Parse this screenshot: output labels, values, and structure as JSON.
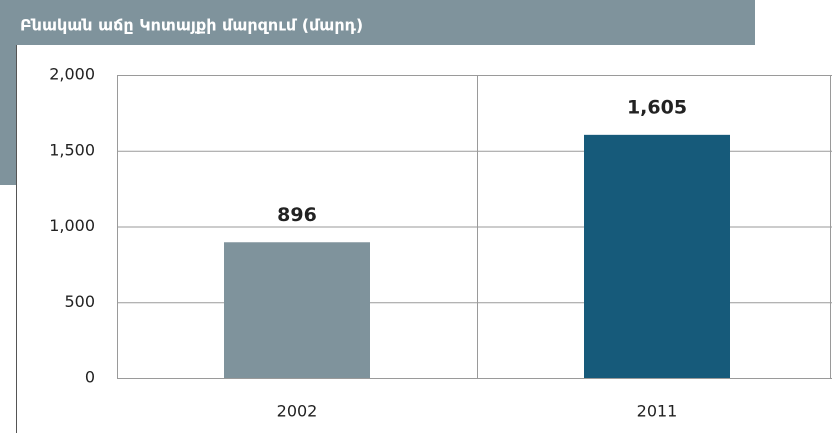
{
  "chart_data": {
    "type": "bar",
    "title": "Բնական աճը Կոտայքի մարզում (մարդ)",
    "categories": [
      "2002",
      "2011"
    ],
    "values": [
      896,
      1605
    ],
    "value_labels": [
      "896",
      "1,605"
    ],
    "colors": [
      "#7f939c",
      "#165a7a"
    ],
    "ylim": [
      0,
      2000
    ],
    "yticks": [
      0,
      500,
      {
        "value": 1000,
        "label": "1,000"
      },
      {
        "value": 1500,
        "label": "1,500"
      },
      {
        "value": 2000,
        "label": "2,000"
      }
    ],
    "grid": true
  }
}
